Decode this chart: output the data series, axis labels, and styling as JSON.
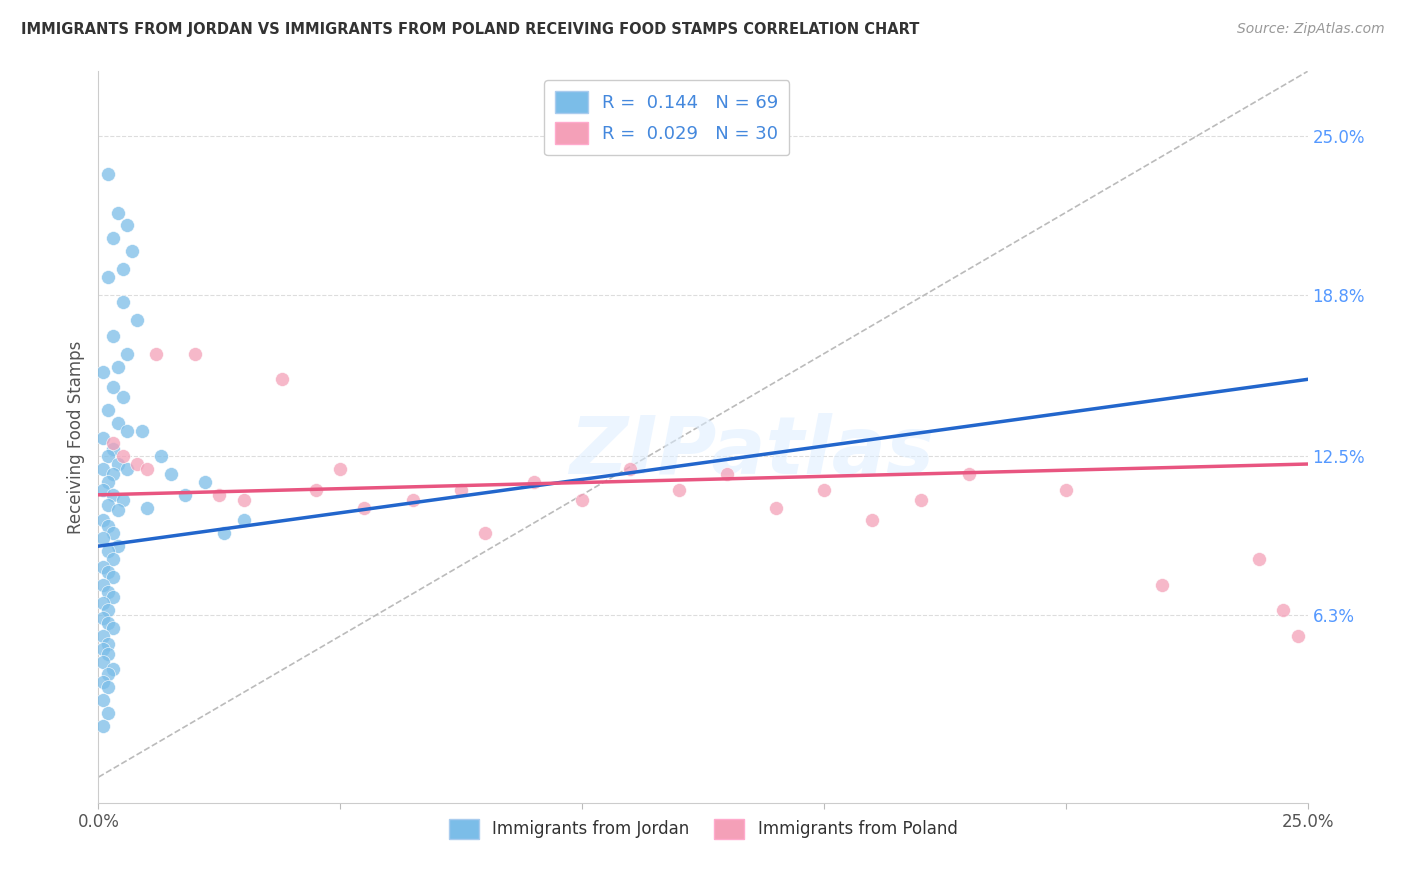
{
  "title": "IMMIGRANTS FROM JORDAN VS IMMIGRANTS FROM POLAND RECEIVING FOOD STAMPS CORRELATION CHART",
  "source": "Source: ZipAtlas.com",
  "ylabel": "Receiving Food Stamps",
  "y_tick_labels_right": [
    "25.0%",
    "18.8%",
    "12.5%",
    "6.3%"
  ],
  "y_tick_right_values": [
    0.25,
    0.188,
    0.125,
    0.063
  ],
  "xlim": [
    0.0,
    0.25
  ],
  "ylim": [
    -0.01,
    0.275
  ],
  "legend_label1": "R =  0.144   N = 69",
  "legend_label2": "R =  0.029   N = 30",
  "legend_label1_bottom": "Immigrants from Jordan",
  "legend_label2_bottom": "Immigrants from Poland",
  "color_jordan": "#7bbde8",
  "color_poland": "#f4a0b8",
  "color_line_jordan": "#2266cc",
  "color_line_poland": "#e85580",
  "color_dashed": "#bbbbbb",
  "background_color": "#ffffff",
  "watermark": "ZIPatlas",
  "jordan_line_x0": 0.0,
  "jordan_line_y0": 0.09,
  "jordan_line_x1": 0.25,
  "jordan_line_y1": 0.155,
  "poland_line_x0": 0.0,
  "poland_line_y0": 0.11,
  "poland_line_x1": 0.25,
  "poland_line_y1": 0.122,
  "jordan_x": [
    0.002,
    0.004,
    0.006,
    0.003,
    0.007,
    0.005,
    0.002,
    0.005,
    0.008,
    0.003,
    0.006,
    0.004,
    0.001,
    0.003,
    0.005,
    0.002,
    0.004,
    0.006,
    0.001,
    0.003,
    0.002,
    0.004,
    0.001,
    0.003,
    0.002,
    0.001,
    0.003,
    0.005,
    0.002,
    0.004,
    0.001,
    0.002,
    0.003,
    0.001,
    0.004,
    0.002,
    0.003,
    0.001,
    0.002,
    0.003,
    0.001,
    0.002,
    0.003,
    0.001,
    0.002,
    0.001,
    0.002,
    0.003,
    0.001,
    0.002,
    0.001,
    0.002,
    0.001,
    0.003,
    0.002,
    0.001,
    0.002,
    0.001,
    0.002,
    0.001,
    0.006,
    0.009,
    0.013,
    0.018,
    0.022,
    0.026,
    0.03,
    0.015,
    0.01
  ],
  "jordan_y": [
    0.235,
    0.22,
    0.215,
    0.21,
    0.205,
    0.198,
    0.195,
    0.185,
    0.178,
    0.172,
    0.165,
    0.16,
    0.158,
    0.152,
    0.148,
    0.143,
    0.138,
    0.135,
    0.132,
    0.128,
    0.125,
    0.122,
    0.12,
    0.118,
    0.115,
    0.112,
    0.11,
    0.108,
    0.106,
    0.104,
    0.1,
    0.098,
    0.095,
    0.093,
    0.09,
    0.088,
    0.085,
    0.082,
    0.08,
    0.078,
    0.075,
    0.072,
    0.07,
    0.068,
    0.065,
    0.062,
    0.06,
    0.058,
    0.055,
    0.052,
    0.05,
    0.048,
    0.045,
    0.042,
    0.04,
    0.037,
    0.035,
    0.03,
    0.025,
    0.02,
    0.12,
    0.135,
    0.125,
    0.11,
    0.115,
    0.095,
    0.1,
    0.118,
    0.105
  ],
  "poland_x": [
    0.003,
    0.005,
    0.008,
    0.01,
    0.012,
    0.02,
    0.025,
    0.03,
    0.038,
    0.045,
    0.05,
    0.055,
    0.065,
    0.075,
    0.08,
    0.09,
    0.1,
    0.11,
    0.12,
    0.13,
    0.14,
    0.15,
    0.16,
    0.17,
    0.18,
    0.2,
    0.22,
    0.24,
    0.245,
    0.248
  ],
  "poland_y": [
    0.13,
    0.125,
    0.122,
    0.12,
    0.165,
    0.165,
    0.11,
    0.108,
    0.155,
    0.112,
    0.12,
    0.105,
    0.108,
    0.112,
    0.095,
    0.115,
    0.108,
    0.12,
    0.112,
    0.118,
    0.105,
    0.112,
    0.1,
    0.108,
    0.118,
    0.112,
    0.075,
    0.085,
    0.065,
    0.055
  ]
}
